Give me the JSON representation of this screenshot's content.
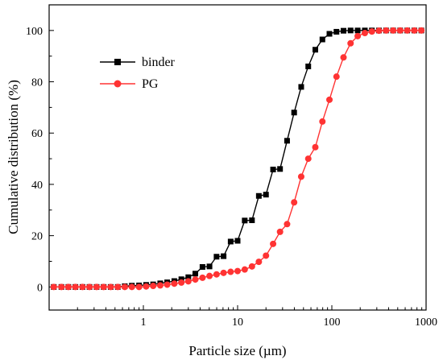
{
  "chart_data": {
    "type": "line",
    "title": "",
    "xlabel": "Particle size (µm)",
    "ylabel": "Cumulative distribution (%)",
    "x_scale": "log",
    "xlim": [
      0.1,
      1000
    ],
    "ylim": [
      -9,
      110
    ],
    "x_ticks": [
      1,
      10,
      100,
      1000
    ],
    "x_tick_labels": [
      "1",
      "10",
      "100",
      "1000"
    ],
    "y_ticks": [
      0,
      20,
      40,
      60,
      80,
      100
    ],
    "y_tick_labels": [
      "0",
      "20",
      "40",
      "60",
      "80",
      "100"
    ],
    "grid": false,
    "legend_position": "upper-left",
    "series": [
      {
        "name": "binder",
        "color": "#000000",
        "marker": "square",
        "x": [
          0.112,
          0.135,
          0.16,
          0.19,
          0.226,
          0.268,
          0.319,
          0.379,
          0.45,
          0.535,
          0.635,
          0.755,
          0.9,
          1.07,
          1.27,
          1.51,
          1.79,
          2.13,
          2.53,
          3.0,
          3.56,
          4.24,
          5.03,
          5.98,
          7.1,
          8.44,
          10.0,
          11.9,
          14.2,
          16.8,
          20.0,
          23.8,
          28.2,
          33.5,
          39.8,
          47.3,
          56.2,
          66.8,
          79.4,
          94.3,
          112,
          133,
          158,
          188,
          224,
          266,
          316,
          376,
          447,
          531,
          631,
          750,
          891
        ],
        "y": [
          0,
          0,
          0,
          0,
          0,
          0,
          0,
          0,
          0,
          0,
          0.3,
          0.5,
          0.6,
          0.8,
          1.0,
          1.4,
          1.8,
          2.3,
          3.0,
          3.8,
          5.2,
          7.8,
          8.0,
          11.8,
          12.0,
          17.7,
          18.0,
          25.9,
          26.0,
          35.5,
          36.0,
          45.8,
          46.0,
          57.0,
          68.0,
          78.0,
          86.0,
          92.5,
          96.5,
          98.7,
          99.5,
          99.9,
          100,
          100,
          100,
          100,
          100,
          100,
          100,
          100,
          100,
          100,
          100
        ]
      },
      {
        "name": "PG",
        "color": "#ff3333",
        "marker": "circle",
        "x": [
          0.112,
          0.135,
          0.16,
          0.19,
          0.226,
          0.268,
          0.319,
          0.379,
          0.45,
          0.535,
          0.635,
          0.755,
          0.9,
          1.07,
          1.27,
          1.51,
          1.79,
          2.13,
          2.53,
          3.0,
          3.56,
          4.24,
          5.03,
          5.98,
          7.1,
          8.44,
          10.0,
          11.9,
          14.2,
          16.8,
          20.0,
          23.8,
          28.2,
          33.5,
          39.8,
          47.3,
          56.2,
          66.8,
          79.4,
          94.3,
          112,
          133,
          158,
          188,
          224,
          266,
          316,
          376,
          447,
          531,
          631,
          750,
          891
        ],
        "y": [
          0,
          0,
          0,
          0,
          0,
          0,
          0,
          0,
          0,
          0,
          0,
          0,
          0,
          0.2,
          0.4,
          0.6,
          0.9,
          1.3,
          1.7,
          2.2,
          2.9,
          3.6,
          4.3,
          4.9,
          5.5,
          5.9,
          6.2,
          6.8,
          8.0,
          9.8,
          12.2,
          16.8,
          21.5,
          24.5,
          33.0,
          43.0,
          50.0,
          54.5,
          64.5,
          73.0,
          82.0,
          89.5,
          95.0,
          97.8,
          99.0,
          99.6,
          99.9,
          100,
          100,
          100,
          100,
          100,
          100
        ]
      }
    ]
  }
}
